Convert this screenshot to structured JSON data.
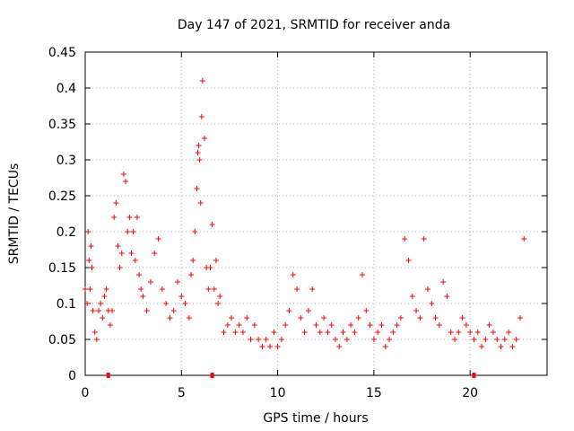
{
  "chart_data": {
    "type": "scatter",
    "title": "Day 147 of 2021, SRMTID for receiver anda",
    "xlabel": "GPS time / hours",
    "ylabel": "SRMTID / TECUs",
    "xlim": [
      0,
      24.0
    ],
    "ylim": [
      0,
      0.45
    ],
    "x_ticks": [
      0,
      5,
      10,
      15,
      20
    ],
    "y_ticks": [
      0,
      0.05,
      0.1,
      0.15,
      0.2,
      0.25,
      0.3,
      0.35,
      0.4,
      0.45
    ],
    "x_tick_labels": [
      "0",
      "5",
      "10",
      "15",
      "20"
    ],
    "y_tick_labels": [
      "0",
      "0.05",
      "0.1",
      "0.15",
      "0.2",
      "0.25",
      "0.3",
      "0.35",
      "0.4",
      "0.45"
    ],
    "grid": true,
    "marker": "plus",
    "color": "#ff0000",
    "baseline_marks_x": [
      1.2,
      6.6,
      20.2
    ],
    "series": [
      {
        "name": "SRMTID",
        "x": [
          0.0,
          0.1,
          0.15,
          0.2,
          0.25,
          0.3,
          0.35,
          0.4,
          0.5,
          0.6,
          0.7,
          0.8,
          0.9,
          1.0,
          1.1,
          1.2,
          1.3,
          1.4,
          1.5,
          1.6,
          1.7,
          1.8,
          1.9,
          2.0,
          2.1,
          2.2,
          2.3,
          2.4,
          2.5,
          2.6,
          2.7,
          2.8,
          2.9,
          3.0,
          3.2,
          3.4,
          3.6,
          3.8,
          4.0,
          4.2,
          4.4,
          4.6,
          4.8,
          5.0,
          5.2,
          5.4,
          5.5,
          5.6,
          5.7,
          5.8,
          5.85,
          5.9,
          5.95,
          6.0,
          6.05,
          6.1,
          6.2,
          6.3,
          6.4,
          6.5,
          6.6,
          6.7,
          6.8,
          6.9,
          7.0,
          7.2,
          7.4,
          7.6,
          7.8,
          8.0,
          8.2,
          8.4,
          8.6,
          8.8,
          9.0,
          9.2,
          9.4,
          9.6,
          9.8,
          10.0,
          10.2,
          10.4,
          10.6,
          10.8,
          11.0,
          11.2,
          11.4,
          11.6,
          11.8,
          12.0,
          12.2,
          12.4,
          12.6,
          12.8,
          13.0,
          13.2,
          13.4,
          13.6,
          13.8,
          14.0,
          14.2,
          14.4,
          14.6,
          14.8,
          15.0,
          15.2,
          15.4,
          15.6,
          15.8,
          16.0,
          16.2,
          16.4,
          16.6,
          16.8,
          17.0,
          17.2,
          17.4,
          17.6,
          17.8,
          18.0,
          18.2,
          18.4,
          18.6,
          18.8,
          19.0,
          19.2,
          19.4,
          19.6,
          19.8,
          20.0,
          20.2,
          20.4,
          20.6,
          20.8,
          21.0,
          21.2,
          21.4,
          21.6,
          21.8,
          22.0,
          22.2,
          22.4,
          22.6,
          22.8
        ],
        "y": [
          0.12,
          0.1,
          0.2,
          0.16,
          0.12,
          0.18,
          0.15,
          0.09,
          0.06,
          0.05,
          0.09,
          0.1,
          0.08,
          0.11,
          0.12,
          0.09,
          0.07,
          0.09,
          0.22,
          0.24,
          0.18,
          0.15,
          0.17,
          0.28,
          0.27,
          0.2,
          0.22,
          0.17,
          0.2,
          0.16,
          0.22,
          0.14,
          0.12,
          0.11,
          0.09,
          0.13,
          0.17,
          0.19,
          0.12,
          0.1,
          0.08,
          0.09,
          0.13,
          0.11,
          0.1,
          0.08,
          0.14,
          0.16,
          0.2,
          0.26,
          0.31,
          0.32,
          0.3,
          0.24,
          0.36,
          0.41,
          0.33,
          0.15,
          0.12,
          0.15,
          0.21,
          0.12,
          0.16,
          0.1,
          0.11,
          0.06,
          0.07,
          0.08,
          0.06,
          0.07,
          0.06,
          0.08,
          0.05,
          0.07,
          0.05,
          0.04,
          0.05,
          0.04,
          0.06,
          0.04,
          0.05,
          0.07,
          0.09,
          0.14,
          0.12,
          0.08,
          0.06,
          0.09,
          0.12,
          0.07,
          0.06,
          0.08,
          0.06,
          0.07,
          0.05,
          0.04,
          0.06,
          0.05,
          0.07,
          0.06,
          0.08,
          0.14,
          0.09,
          0.07,
          0.05,
          0.06,
          0.07,
          0.04,
          0.05,
          0.06,
          0.07,
          0.08,
          0.19,
          0.16,
          0.11,
          0.09,
          0.08,
          0.19,
          0.12,
          0.1,
          0.08,
          0.07,
          0.13,
          0.11,
          0.06,
          0.05,
          0.06,
          0.08,
          0.07,
          0.06,
          0.05,
          0.06,
          0.04,
          0.05,
          0.07,
          0.06,
          0.05,
          0.04,
          0.05,
          0.06,
          0.04,
          0.05,
          0.08,
          0.19
        ]
      }
    ]
  }
}
